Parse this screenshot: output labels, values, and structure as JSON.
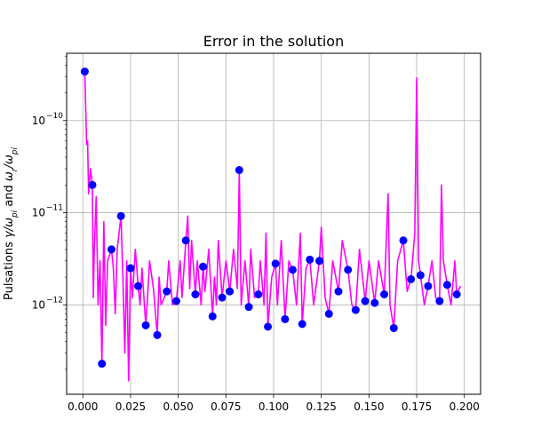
{
  "chart_data": {
    "type": "line",
    "title": "Error in the solution",
    "xlabel": "",
    "ylabel_prefix": "Pulsations",
    "ylabel": "Pulsations  γ/ω_pi and ω_r/ω_pi",
    "xlim": [
      -0.0085,
      0.2085
    ],
    "ylim_log10": [
      -12.97,
      -9.27
    ],
    "yscale": "log",
    "grid": true,
    "x_ticks": [
      0.0,
      0.025,
      0.05,
      0.075,
      0.1,
      0.125,
      0.15,
      0.175,
      0.2
    ],
    "x_tick_labels": [
      "0.000",
      "0.025",
      "0.050",
      "0.075",
      "0.100",
      "0.125",
      "0.150",
      "0.175",
      "0.200"
    ],
    "y_ticks_exp": [
      -12,
      -11,
      -10
    ],
    "y_tick_labels": [
      "10",
      "10",
      "10"
    ],
    "y_tick_sups": [
      "−12",
      "−11",
      "−10"
    ],
    "line_series": {
      "color": "#ff00ff",
      "points": [
        [
          0.001,
          3.4e-10
        ],
        [
          0.002,
          5.5e-11
        ],
        [
          0.0025,
          6e-11
        ],
        [
          0.003,
          1.6e-11
        ],
        [
          0.004,
          3e-11
        ],
        [
          0.005,
          2e-11
        ],
        [
          0.0055,
          1.2e-12
        ],
        [
          0.006,
          4e-12
        ],
        [
          0.007,
          1.5e-11
        ],
        [
          0.008,
          1e-12
        ],
        [
          0.009,
          3e-12
        ],
        [
          0.01,
          2.3e-13
        ],
        [
          0.011,
          8e-12
        ],
        [
          0.012,
          6e-13
        ],
        [
          0.013,
          3e-12
        ],
        [
          0.015,
          4e-12
        ],
        [
          0.016,
          2.5e-12
        ],
        [
          0.017,
          8e-13
        ],
        [
          0.018,
          4e-12
        ],
        [
          0.02,
          9.2e-12
        ],
        [
          0.021,
          2e-12
        ],
        [
          0.022,
          3e-13
        ],
        [
          0.023,
          3e-12
        ],
        [
          0.024,
          1.5e-13
        ],
        [
          0.025,
          2.5e-12
        ],
        [
          0.026,
          1.2e-12
        ],
        [
          0.0275,
          4e-12
        ],
        [
          0.029,
          1.6e-12
        ],
        [
          0.03,
          1e-12
        ],
        [
          0.031,
          2.5e-12
        ],
        [
          0.033,
          6e-13
        ],
        [
          0.034,
          1.3e-12
        ],
        [
          0.035,
          3e-12
        ],
        [
          0.037,
          1.5e-12
        ],
        [
          0.039,
          4.7e-13
        ],
        [
          0.04,
          2e-12
        ],
        [
          0.041,
          1e-12
        ],
        [
          0.044,
          1.4e-12
        ],
        [
          0.045,
          3e-12
        ],
        [
          0.047,
          1e-12
        ],
        [
          0.049,
          1.1e-12
        ],
        [
          0.051,
          3e-12
        ],
        [
          0.052,
          1.2e-12
        ],
        [
          0.054,
          5e-12
        ],
        [
          0.055,
          9.2e-12
        ],
        [
          0.056,
          1.5e-12
        ],
        [
          0.057,
          5e-12
        ],
        [
          0.059,
          1.3e-12
        ],
        [
          0.06,
          3e-12
        ],
        [
          0.062,
          1e-12
        ],
        [
          0.063,
          2.6e-12
        ],
        [
          0.064,
          1.4e-12
        ],
        [
          0.066,
          4e-12
        ],
        [
          0.068,
          7.5e-13
        ],
        [
          0.069,
          2e-12
        ],
        [
          0.07,
          1e-12
        ],
        [
          0.071,
          5e-12
        ],
        [
          0.073,
          1.2e-12
        ],
        [
          0.075,
          3e-12
        ],
        [
          0.077,
          1.4e-12
        ],
        [
          0.079,
          4e-12
        ],
        [
          0.081,
          1.5e-12
        ],
        [
          0.082,
          2.9e-11
        ],
        [
          0.083,
          1e-12
        ],
        [
          0.085,
          3e-12
        ],
        [
          0.087,
          9.5e-13
        ],
        [
          0.088,
          4e-12
        ],
        [
          0.09,
          1.2e-12
        ],
        [
          0.092,
          1.3e-12
        ],
        [
          0.093,
          3e-12
        ],
        [
          0.095,
          1e-12
        ],
        [
          0.096,
          6e-12
        ],
        [
          0.097,
          5.8e-13
        ],
        [
          0.099,
          2e-12
        ],
        [
          0.101,
          2.8e-12
        ],
        [
          0.102,
          1e-12
        ],
        [
          0.104,
          5e-12
        ],
        [
          0.106,
          7e-13
        ],
        [
          0.108,
          3e-12
        ],
        [
          0.11,
          2.4e-12
        ],
        [
          0.112,
          1e-12
        ],
        [
          0.114,
          6e-12
        ],
        [
          0.115,
          6.2e-13
        ],
        [
          0.117,
          2.5e-12
        ],
        [
          0.119,
          3.1e-12
        ],
        [
          0.121,
          1e-12
        ],
        [
          0.124,
          3e-12
        ],
        [
          0.125,
          7e-12
        ],
        [
          0.127,
          1.2e-12
        ],
        [
          0.129,
          8e-13
        ],
        [
          0.131,
          3e-12
        ],
        [
          0.134,
          1.4e-12
        ],
        [
          0.136,
          5e-12
        ],
        [
          0.139,
          2.4e-12
        ],
        [
          0.141,
          1e-12
        ],
        [
          0.143,
          8.8e-13
        ],
        [
          0.145,
          4e-12
        ],
        [
          0.148,
          1.1e-12
        ],
        [
          0.15,
          3e-12
        ],
        [
          0.153,
          1.05e-12
        ],
        [
          0.155,
          3e-12
        ],
        [
          0.158,
          1.3e-12
        ],
        [
          0.16,
          1.6e-11
        ],
        [
          0.161,
          1e-12
        ],
        [
          0.163,
          5.6e-13
        ],
        [
          0.165,
          3e-12
        ],
        [
          0.168,
          5e-12
        ],
        [
          0.17,
          1.4e-12
        ],
        [
          0.172,
          1.9e-12
        ],
        [
          0.174,
          6e-12
        ],
        [
          0.175,
          2.9e-10
        ],
        [
          0.176,
          3e-12
        ],
        [
          0.177,
          2.1e-12
        ],
        [
          0.179,
          1e-12
        ],
        [
          0.181,
          1.6e-12
        ],
        [
          0.183,
          3e-12
        ],
        [
          0.185,
          1.2e-12
        ],
        [
          0.187,
          1.1e-12
        ],
        [
          0.188,
          2e-11
        ],
        [
          0.189,
          3e-12
        ],
        [
          0.191,
          1.65e-12
        ],
        [
          0.193,
          1e-12
        ],
        [
          0.195,
          3e-12
        ],
        [
          0.196,
          1.3e-12
        ],
        [
          0.198,
          1.6e-12
        ]
      ]
    },
    "marker_series": {
      "color": "#0000ff",
      "points": [
        [
          0.001,
          3.4e-10
        ],
        [
          0.005,
          2e-11
        ],
        [
          0.01,
          2.3e-13
        ],
        [
          0.015,
          4e-12
        ],
        [
          0.02,
          9.2e-12
        ],
        [
          0.025,
          2.5e-12
        ],
        [
          0.029,
          1.6e-12
        ],
        [
          0.033,
          6e-13
        ],
        [
          0.039,
          4.7e-13
        ],
        [
          0.044,
          1.4e-12
        ],
        [
          0.049,
          1.1e-12
        ],
        [
          0.054,
          5e-12
        ],
        [
          0.059,
          1.3e-12
        ],
        [
          0.063,
          2.6e-12
        ],
        [
          0.068,
          7.5e-13
        ],
        [
          0.073,
          1.2e-12
        ],
        [
          0.077,
          1.4e-12
        ],
        [
          0.082,
          2.9e-11
        ],
        [
          0.087,
          9.5e-13
        ],
        [
          0.092,
          1.3e-12
        ],
        [
          0.097,
          5.8e-13
        ],
        [
          0.101,
          2.8e-12
        ],
        [
          0.106,
          7e-13
        ],
        [
          0.11,
          2.4e-12
        ],
        [
          0.115,
          6.2e-13
        ],
        [
          0.119,
          3.1e-12
        ],
        [
          0.124,
          3e-12
        ],
        [
          0.129,
          8e-13
        ],
        [
          0.134,
          1.4e-12
        ],
        [
          0.139,
          2.4e-12
        ],
        [
          0.143,
          8.8e-13
        ],
        [
          0.148,
          1.1e-12
        ],
        [
          0.153,
          1.05e-12
        ],
        [
          0.158,
          1.3e-12
        ],
        [
          0.163,
          5.6e-13
        ],
        [
          0.168,
          5e-12
        ],
        [
          0.172,
          1.9e-12
        ],
        [
          0.177,
          2.1e-12
        ],
        [
          0.181,
          1.6e-12
        ],
        [
          0.187,
          1.1e-12
        ],
        [
          0.191,
          1.65e-12
        ],
        [
          0.196,
          1.3e-12
        ]
      ]
    }
  }
}
